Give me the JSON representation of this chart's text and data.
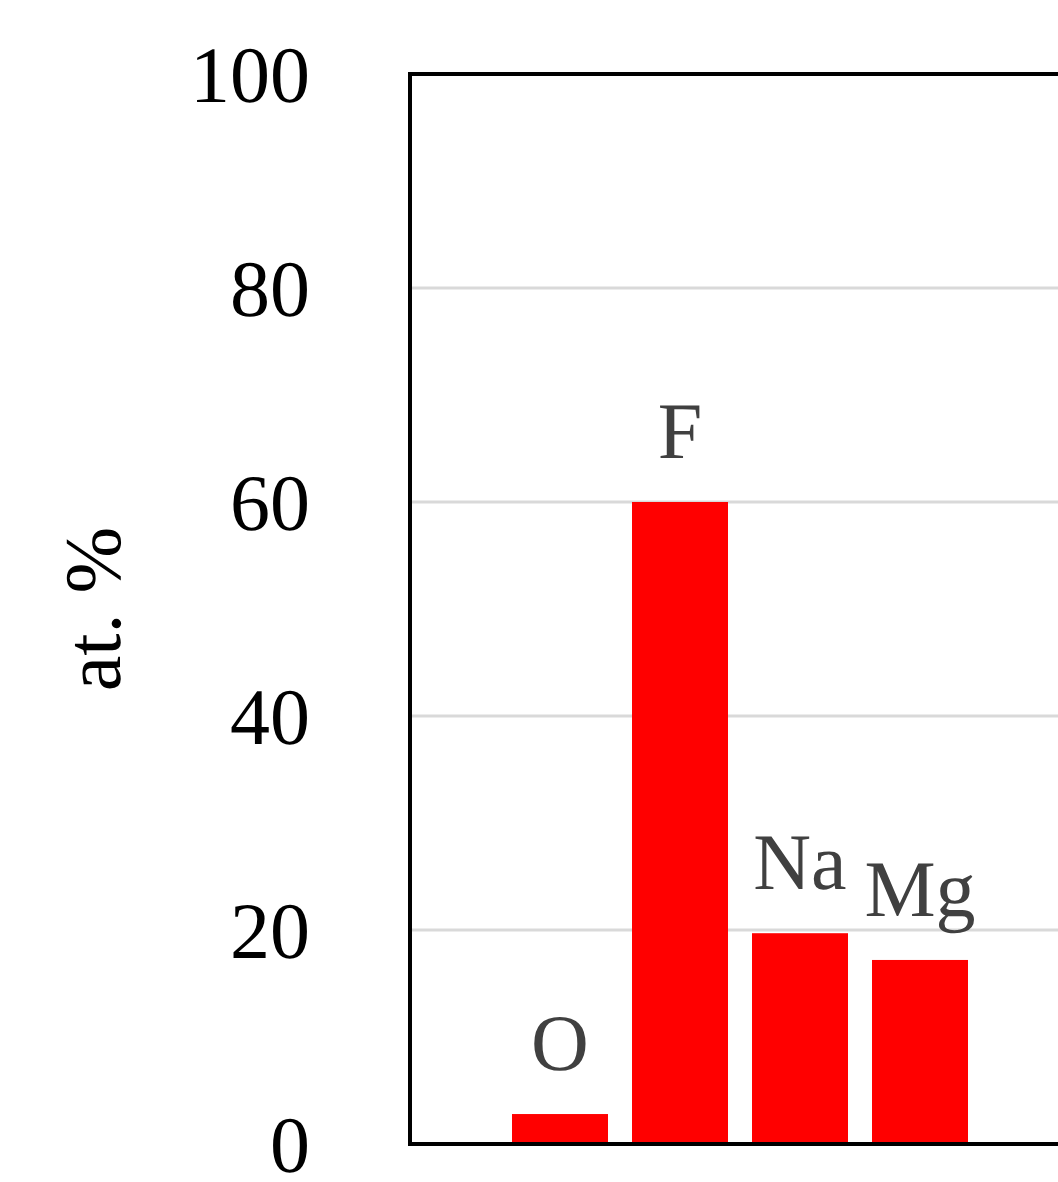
{
  "chart_data": {
    "type": "bar",
    "ylabel": "at. %",
    "categories": [
      "O",
      "F",
      "Na",
      "Mg"
    ],
    "values": [
      2.8,
      60,
      19.7,
      17.2
    ],
    "color": "#ff0000",
    "ylim": [
      0,
      100
    ],
    "yticks": [
      0,
      20,
      40,
      60,
      80,
      100
    ],
    "grid": "y"
  }
}
